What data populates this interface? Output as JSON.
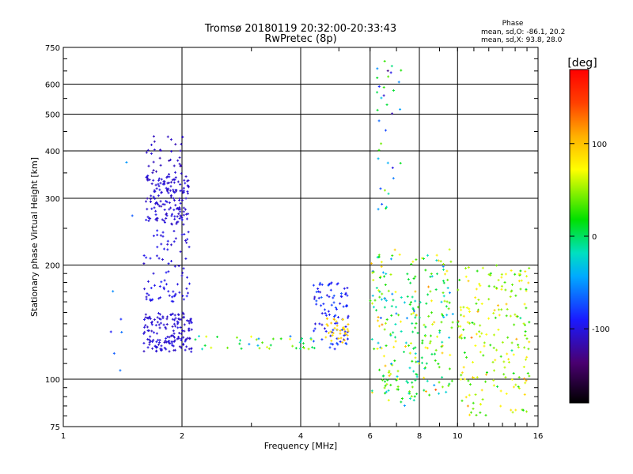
{
  "chart_data": {
    "type": "scatter",
    "title": "Tromsø 20180119 20:32:00-20:33:43",
    "subtitle": "RwPretec (8p)",
    "xlabel": "Frequency [MHz]",
    "ylabel": "Stationary phase Virtual Height [km]",
    "x_scale": "log",
    "y_scale": "log",
    "xlim": [
      1,
      16
    ],
    "ylim": [
      75,
      750
    ],
    "x_ticks": [
      1,
      2,
      4,
      6,
      8,
      10,
      16
    ],
    "y_ticks": [
      75,
      100,
      200,
      300,
      400,
      500,
      600,
      750
    ],
    "grid": true,
    "stats": {
      "title": "Phase",
      "line_o": "mean, sd,O: -86.1, 20.2",
      "line_x": "mean, sd,X: 93.8, 28.0"
    },
    "colorbar": {
      "label": "[deg]",
      "range": [
        -180,
        180
      ],
      "ticks": [
        100,
        0,
        -100
      ]
    },
    "clusters": [
      {
        "name": "o_f_low",
        "x": [
          1.62,
          2.08
        ],
        "y": [
          255,
          345
        ],
        "n": 160,
        "phase": -105,
        "spread": 12
      },
      {
        "name": "o_f_high",
        "x": [
          1.62,
          2.02
        ],
        "y": [
          340,
          440
        ],
        "n": 35,
        "phase": -110,
        "spread": 10
      },
      {
        "name": "o_f_mid",
        "x": [
          1.6,
          2.1
        ],
        "y": [
          160,
          250
        ],
        "n": 80,
        "phase": -100,
        "spread": 15
      },
      {
        "name": "o_e_layer",
        "x": [
          1.6,
          2.12
        ],
        "y": [
          118,
          150
        ],
        "n": 160,
        "phase": -105,
        "spread": 12
      },
      {
        "name": "e_trail",
        "x": [
          2.15,
          4.4
        ],
        "y": [
          120,
          130
        ],
        "n": 40,
        "phase": 10,
        "spread": 110
      },
      {
        "name": "x_mid_4_5",
        "x": [
          4.3,
          5.3
        ],
        "y": [
          120,
          180
        ],
        "n": 90,
        "phase": -90,
        "spread": 30
      },
      {
        "name": "x_mid_yellow",
        "x": [
          4.6,
          5.3
        ],
        "y": [
          125,
          145
        ],
        "n": 35,
        "phase": 95,
        "spread": 20
      },
      {
        "name": "f_6_8",
        "x": [
          6.0,
          7.9
        ],
        "y": [
          85,
          220
        ],
        "n": 160,
        "phase": 20,
        "spread": 120
      },
      {
        "name": "f_6_8_high",
        "x": [
          6.2,
          7.2
        ],
        "y": [
          280,
          700
        ],
        "n": 35,
        "phase": -20,
        "spread": 130
      },
      {
        "name": "f_8_10",
        "x": [
          7.8,
          9.8
        ],
        "y": [
          90,
          220
        ],
        "n": 110,
        "phase": 30,
        "spread": 120
      },
      {
        "name": "f_10_16",
        "x": [
          10.0,
          15.2
        ],
        "y": [
          80,
          200
        ],
        "n": 200,
        "phase": 60,
        "spread": 90
      },
      {
        "name": "sparse_low",
        "x": [
          1.3,
          1.5
        ],
        "y": [
          105,
          390
        ],
        "n": 8,
        "phase": -60,
        "spread": 60
      }
    ]
  }
}
